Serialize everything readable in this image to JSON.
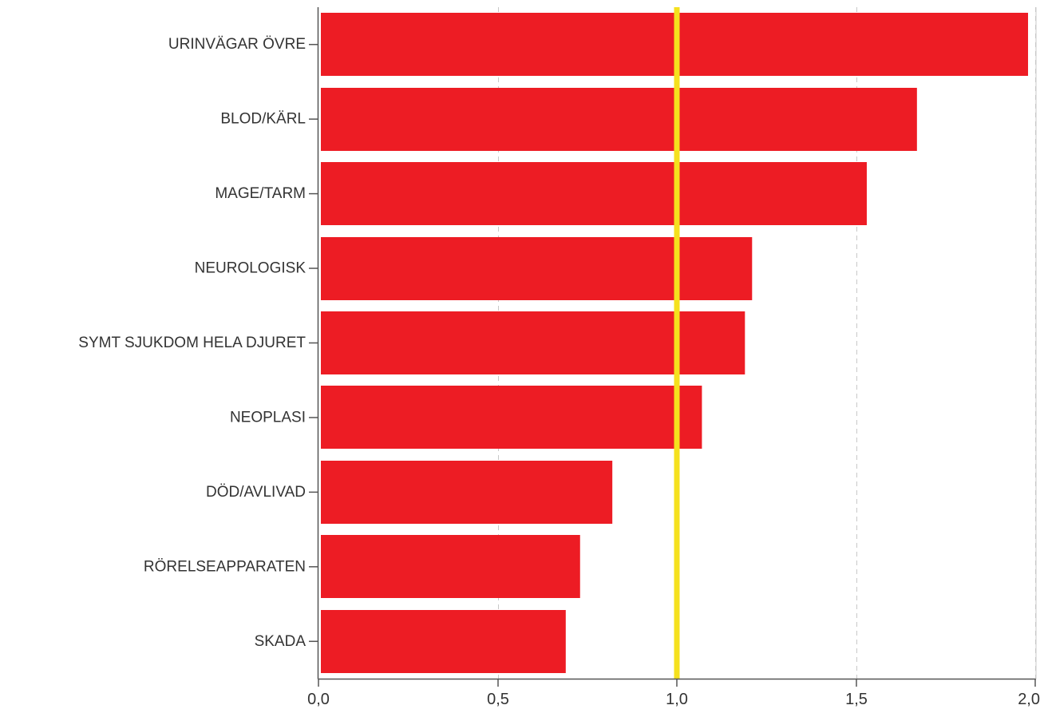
{
  "chart_data": {
    "type": "bar",
    "orientation": "horizontal",
    "categories": [
      "URINVÄGAR ÖVRE",
      "BLOD/KÄRL",
      "MAGE/TARM",
      "NEUROLOGISK",
      "SYMT SJUKDOM HELA DJURET",
      "NEOPLASI",
      "DÖD/AVLIVAD",
      "RÖRELSEAPPARATEN",
      "SKADA"
    ],
    "values": [
      1.98,
      1.67,
      1.53,
      1.21,
      1.19,
      1.07,
      0.82,
      0.73,
      0.69
    ],
    "xlim": [
      0.0,
      2.0
    ],
    "xticks": [
      0.0,
      0.5,
      1.0,
      1.5,
      2.0
    ],
    "xtick_labels": [
      "0,0",
      "0,5",
      "1,0",
      "1,5",
      "2,0"
    ],
    "reference_line": {
      "value": 1.0,
      "color": "#f5e11e"
    },
    "grid": "vertical dashed",
    "title": "",
    "xlabel": "",
    "ylabel": "",
    "bar_color": "#ed1c24",
    "axis_color": "#555555",
    "grid_color": "#c8c8c8"
  }
}
